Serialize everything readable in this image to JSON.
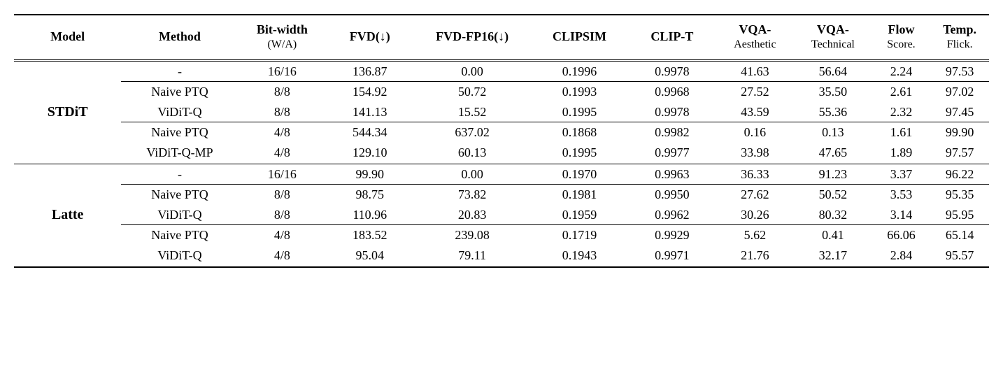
{
  "columns": {
    "model": "Model",
    "method": "Method",
    "bitwidth": {
      "main": "Bit-width",
      "sub": "(W/A)"
    },
    "fvd": "FVD(↓)",
    "fvd_fp16": "FVD-FP16(↓)",
    "clipsim": "CLIPSIM",
    "clip_t": "CLIP-T",
    "vqa_a": {
      "main": "VQA-",
      "sub": "Aesthetic"
    },
    "vqa_t": {
      "main": "VQA-",
      "sub": "Technical"
    },
    "flow": {
      "main": "Flow",
      "sub": "Score."
    },
    "temp": {
      "main": "Temp.",
      "sub": "Flick."
    }
  },
  "groups": [
    {
      "model": "STDiT",
      "blocks": [
        {
          "rows": [
            {
              "method": "-",
              "bw": "16/16",
              "fvd": "136.87",
              "fvd16": "0.00",
              "clipsim": "0.1996",
              "clipt": "0.9978",
              "vqaa": "41.63",
              "vqat": "56.64",
              "flow": "2.24",
              "temp": "97.53"
            }
          ]
        },
        {
          "rows": [
            {
              "method": "Naive PTQ",
              "bw": "8/8",
              "fvd": "154.92",
              "fvd16": "50.72",
              "clipsim": "0.1993",
              "clipt": "0.9968",
              "vqaa": "27.52",
              "vqat": "35.50",
              "flow": "2.61",
              "temp": "97.02"
            },
            {
              "method": "ViDiT-Q",
              "bw": "8/8",
              "fvd": "141.13",
              "fvd16": "15.52",
              "clipsim": "0.1995",
              "clipt": "0.9978",
              "vqaa": "43.59",
              "vqat": "55.36",
              "flow": "2.32",
              "temp": "97.45"
            }
          ]
        },
        {
          "rows": [
            {
              "method": "Naive PTQ",
              "bw": "4/8",
              "fvd": "544.34",
              "fvd16": "637.02",
              "clipsim": "0.1868",
              "clipt": "0.9982",
              "vqaa": "0.16",
              "vqat": "0.13",
              "flow": "1.61",
              "temp": "99.90"
            },
            {
              "method": "ViDiT-Q-MP",
              "bw": "4/8",
              "fvd": "129.10",
              "fvd16": "60.13",
              "clipsim": "0.1995",
              "clipt": "0.9977",
              "vqaa": "33.98",
              "vqat": "47.65",
              "flow": "1.89",
              "temp": "97.57"
            }
          ]
        }
      ]
    },
    {
      "model": "Latte",
      "blocks": [
        {
          "rows": [
            {
              "method": "-",
              "bw": "16/16",
              "fvd": "99.90",
              "fvd16": "0.00",
              "clipsim": "0.1970",
              "clipt": "0.9963",
              "vqaa": "36.33",
              "vqat": "91.23",
              "flow": "3.37",
              "temp": "96.22"
            }
          ]
        },
        {
          "rows": [
            {
              "method": "Naive PTQ",
              "bw": "8/8",
              "fvd": "98.75",
              "fvd16": "73.82",
              "clipsim": "0.1981",
              "clipt": "0.9950",
              "vqaa": "27.62",
              "vqat": "50.52",
              "flow": "3.53",
              "temp": "95.35"
            },
            {
              "method": "ViDiT-Q",
              "bw": "8/8",
              "fvd": "110.96",
              "fvd16": "20.83",
              "clipsim": "0.1959",
              "clipt": "0.9962",
              "vqaa": "30.26",
              "vqat": "80.32",
              "flow": "3.14",
              "temp": "95.95"
            }
          ]
        },
        {
          "rows": [
            {
              "method": "Naive PTQ",
              "bw": "4/8",
              "fvd": "183.52",
              "fvd16": "239.08",
              "clipsim": "0.1719",
              "clipt": "0.9929",
              "vqaa": "5.62",
              "vqat": "0.41",
              "flow": "66.06",
              "temp": "65.14"
            },
            {
              "method": "ViDiT-Q",
              "bw": "4/8",
              "fvd": "95.04",
              "fvd16": "79.11",
              "clipsim": "0.1943",
              "clipt": "0.9971",
              "vqaa": "21.76",
              "vqat": "32.17",
              "flow": "2.84",
              "temp": "95.57"
            }
          ]
        }
      ]
    }
  ]
}
